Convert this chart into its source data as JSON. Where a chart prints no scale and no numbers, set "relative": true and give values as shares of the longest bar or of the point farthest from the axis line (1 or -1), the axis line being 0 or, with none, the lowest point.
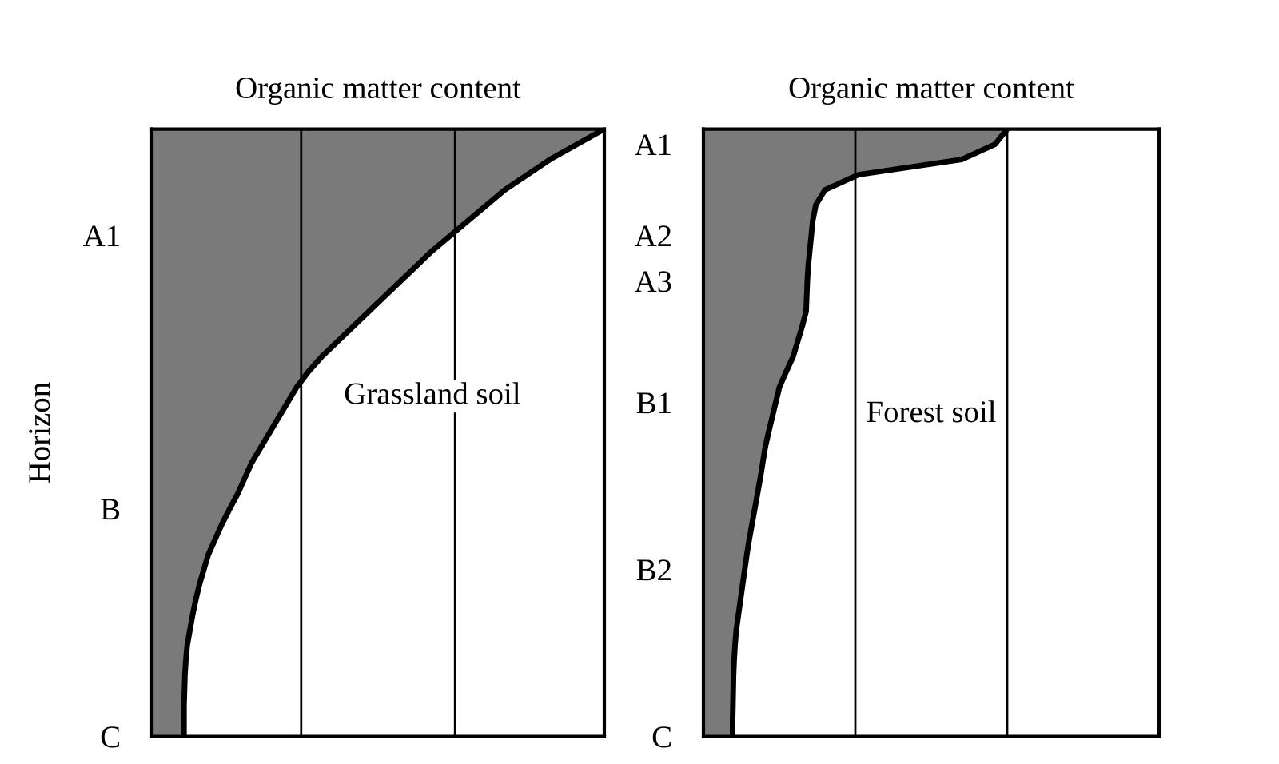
{
  "chart_data": [
    {
      "type": "area",
      "orientation": "horizontal",
      "relative": true,
      "title": "Organic matter content",
      "ylabel": "Horizon",
      "tick_labels": "y",
      "legend": false,
      "categories": [
        null,
        null,
        null,
        null,
        null,
        null,
        null,
        "A1",
        null,
        null,
        null,
        null,
        null,
        null,
        null,
        null,
        null,
        null,
        null,
        null,
        null,
        null,
        null,
        null,
        null,
        "B",
        null,
        null,
        null,
        null,
        null,
        null,
        null,
        null,
        null,
        null,
        null,
        null,
        null,
        null,
        "C"
      ],
      "series": [
        {
          "color": "#7a7a7a",
          "values": [
            1.0,
            0.94,
            0.88,
            0.83,
            0.78,
            0.74,
            0.7,
            0.66,
            0.62,
            0.585,
            0.55,
            0.515,
            0.48,
            0.445,
            0.41,
            0.375,
            0.345,
            0.32,
            0.3,
            0.28,
            0.26,
            0.24,
            0.22,
            0.205,
            0.19,
            0.172,
            0.155,
            0.14,
            0.125,
            0.115,
            0.105,
            0.097,
            0.09,
            0.084,
            0.078,
            0.075,
            0.073,
            0.072,
            0.071,
            0.071,
            0.071
          ]
        }
      ],
      "ref_lines": [
        {
          "axis": "x",
          "value": 0.33,
          "color": "#000000"
        },
        {
          "axis": "x",
          "value": 0.67,
          "color": "#000000"
        }
      ],
      "annotations": [
        "Grassland soil"
      ]
    },
    {
      "type": "area",
      "orientation": "horizontal",
      "relative": true,
      "title": "Organic matter content",
      "tick_labels": "y",
      "legend": false,
      "categories": [
        null,
        "A1",
        null,
        null,
        null,
        null,
        null,
        "A2",
        null,
        null,
        "A3",
        null,
        null,
        null,
        null,
        null,
        null,
        null,
        "B1",
        null,
        null,
        null,
        null,
        null,
        null,
        null,
        null,
        null,
        null,
        "B2",
        null,
        null,
        null,
        null,
        null,
        null,
        null,
        null,
        null,
        null,
        "C"
      ],
      "series": [
        {
          "color": "#7a7a7a",
          "values": [
            1.0,
            0.96,
            0.85,
            0.51,
            0.4,
            0.37,
            0.36,
            0.355,
            0.35,
            0.345,
            0.342,
            0.34,
            0.338,
            0.325,
            0.31,
            0.295,
            0.272,
            0.25,
            0.238,
            0.226,
            0.214,
            0.203,
            0.195,
            0.187,
            0.178,
            0.169,
            0.16,
            0.151,
            0.143,
            0.136,
            0.129,
            0.122,
            0.115,
            0.108,
            0.104,
            0.101,
            0.099,
            0.098,
            0.097,
            0.096,
            0.096
          ]
        }
      ],
      "ref_lines": [
        {
          "axis": "x",
          "value": 0.5,
          "color": "#000000"
        },
        {
          "axis": "x",
          "value": 1.0,
          "color": "#000000"
        },
        {
          "axis": "x",
          "value": 1.5,
          "color": "#000000"
        }
      ],
      "annotations": [
        "Forest soil"
      ]
    }
  ]
}
